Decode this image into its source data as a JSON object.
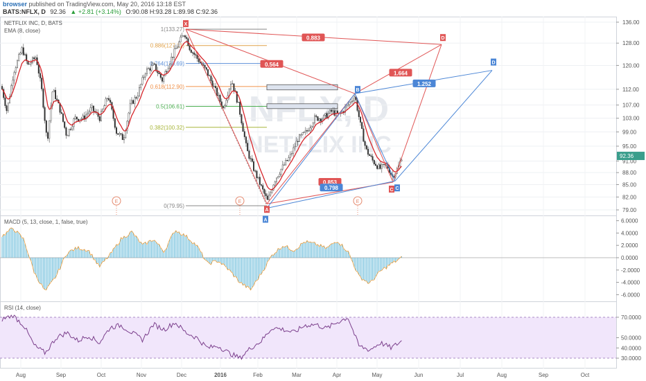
{
  "header": {
    "user": "browser",
    "published": "published on TradingView.com, May 20, 2016 13:18 EST",
    "symbol": "BATS:NFLX, D",
    "last": "92.36",
    "change": "+2.81 (+3.14%)",
    "ohlc": "O:90.08  H:93.28  L:89.98  C:92.36"
  },
  "watermark": {
    "symbol": "NFLX, D",
    "name": "NETFLIX INC"
  },
  "chart_data": {
    "type": "candlestick",
    "title": "NETFLIX INC, D, BATS",
    "indicator_label": "EMA (8, close)",
    "price_axis": {
      "ticks": [
        136.0,
        128.0,
        120.0,
        112.0,
        107.0,
        103.0,
        99.0,
        95.0,
        91.0,
        88.0,
        85.0,
        82.0,
        79.0
      ],
      "scale": "log"
    },
    "last_price_marker": "92.36",
    "time_axis": {
      "labels": [
        "Aug",
        "Sep",
        "Oct",
        "Nov",
        "Dec",
        "2016",
        "Feb",
        "Mar",
        "Apr",
        "May",
        "Jun",
        "Jul",
        "Aug",
        "Sep",
        "Oct"
      ]
    },
    "fib_levels": [
      {
        "label": "1(133.27)",
        "value": 133.27,
        "color": "#888888"
      },
      {
        "label": "0.886(127.11)",
        "value": 127.11,
        "color": "#e0a24a"
      },
      {
        "label": "0.764(120.69)",
        "value": 120.69,
        "color": "#5b8fd8"
      },
      {
        "label": "0.618(112.90)",
        "value": 112.9,
        "color": "#f0924a"
      },
      {
        "label": "0.5(106.61)",
        "value": 106.61,
        "color": "#4caf50"
      },
      {
        "label": "0.382(100.32)",
        "value": 100.32,
        "color": "#a8b63a"
      },
      {
        "label": "0(79.95)",
        "value": 79.95,
        "color": "#888888"
      }
    ],
    "patterns": [
      {
        "name": "red",
        "points": {
          "X": 133.27,
          "A": 79.95,
          "B": 111.0,
          "C": 85.6,
          "D": 127.5
        },
        "ratios": [
          "0.883",
          "0.564",
          "0.853",
          "1.664"
        ]
      },
      {
        "name": "blue",
        "points": {
          "A": 80.5,
          "B": 111.0,
          "C": 86.2,
          "D": 119.5
        },
        "ratios": [
          "0.798",
          "1.252"
        ]
      }
    ],
    "earnings_markers": [
      "E",
      "E",
      "E"
    ],
    "macd": {
      "label": "MACD (5, 13, close, 1, false, true)",
      "ticks": [
        "6.0000",
        "4.0000",
        "2.0000",
        "0.0000",
        "-2.0000",
        "-4.0000",
        "-6.0000"
      ],
      "values": [
        3.5,
        4.8,
        3.0,
        -2.5,
        -5.5,
        -3.0,
        0.8,
        1.6,
        1.2,
        -1.5,
        0.5,
        3.0,
        4.2,
        2.0,
        3.0,
        1.0,
        4.5,
        3.5,
        2.0,
        -1.0,
        -0.5,
        -2.0,
        -4.0,
        -5.2,
        -2.5,
        0.5,
        2.0,
        1.2,
        2.6,
        2.2,
        1.5,
        2.8,
        1.0,
        -3.0,
        -4.2,
        -2.2,
        -1.0,
        0.0
      ]
    },
    "rsi": {
      "label": "RSI (14, close)",
      "ticks": [
        "70.0000",
        "50.0000",
        "40.0000",
        "30.0000"
      ],
      "band": [
        30,
        70
      ],
      "values": [
        68,
        72,
        62,
        42,
        35,
        50,
        55,
        47,
        52,
        45,
        60,
        62,
        55,
        48,
        63,
        58,
        65,
        55,
        50,
        40,
        42,
        35,
        30,
        40,
        47,
        60,
        58,
        55,
        62,
        63,
        59,
        65,
        70,
        42,
        38,
        45,
        40,
        47
      ]
    }
  }
}
